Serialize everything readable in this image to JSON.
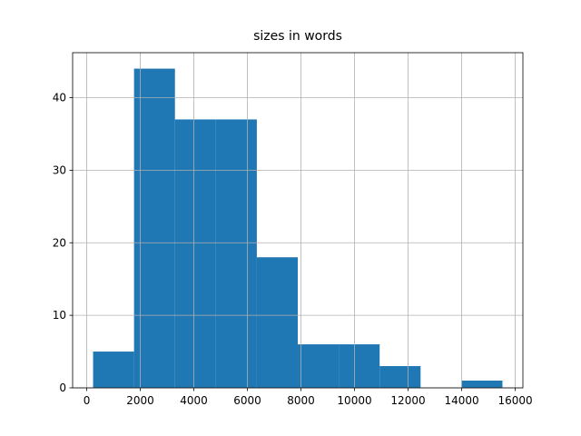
{
  "chart_data": {
    "type": "histogram",
    "title": "sizes in words",
    "bins": [
      238,
      1767,
      3295,
      4824,
      6352,
      7881,
      9409,
      10938,
      12466,
      13995,
      15523
    ],
    "counts": [
      5,
      44,
      37,
      37,
      18,
      6,
      6,
      3,
      0,
      1
    ],
    "color": "#1f77b4",
    "xlim": [
      -526,
      16287
    ],
    "xticks": [
      0,
      2000,
      4000,
      6000,
      8000,
      10000,
      12000,
      14000,
      16000
    ],
    "ylim": [
      0,
      46.2
    ],
    "yticks": [
      0,
      10,
      20,
      30,
      40
    ],
    "grid": true
  }
}
